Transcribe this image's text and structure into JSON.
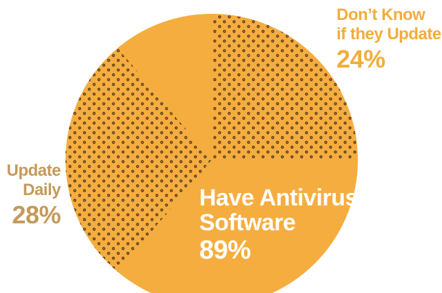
{
  "chart_data": {
    "type": "pie",
    "slices": [
      {
        "label_lines": [
          "Have Antivirus",
          "Software"
        ],
        "value": 89,
        "value_label": "89%",
        "pattern": "solid",
        "color": "#f6ad3f"
      },
      {
        "label_lines": [
          "Don’t Know",
          "if they Update"
        ],
        "value": 24,
        "value_label": "24%",
        "pattern": "dots",
        "color": "#f6ad3f"
      },
      {
        "label_lines": [
          "Update",
          "Daily"
        ],
        "value": 28,
        "value_label": "28%",
        "pattern": "dots",
        "color": "#f6ad3f"
      }
    ]
  },
  "colors": {
    "slice_fill": "#f6ad3f",
    "dot_color": "#3a2a1a",
    "label_orange": "#f2ad3c",
    "label_tan": "#c49a5a",
    "inner_label": "#ffffff"
  }
}
